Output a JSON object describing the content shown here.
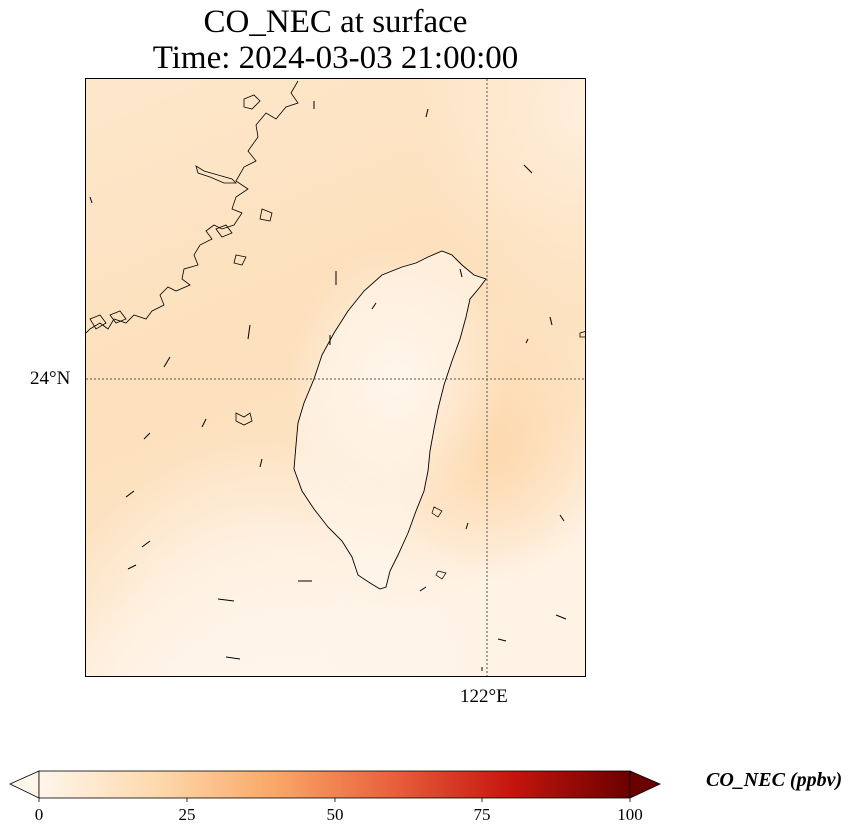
{
  "figure": {
    "title_line1": "CO_NEC at surface",
    "title_line2": "Time: 2024-03-03 21:00:00"
  },
  "map": {
    "lat_gridline_label": "24°N",
    "lon_gridline_label": "122°E",
    "region": "Taiwan and southeast China coast",
    "field_color_low": "#fff5eb",
    "field_color_mid": "#fdd9ad"
  },
  "colorbar": {
    "label": "CO_NEC (ppbv)",
    "min": 0,
    "max": 100,
    "extend": "both",
    "colormap": "Oranges-to-dark-red",
    "ticks": [
      "0",
      "25",
      "50",
      "75",
      "100"
    ],
    "stops": [
      "#fff5eb",
      "#fdd9ad",
      "#f9a766",
      "#e8603c",
      "#c5150d",
      "#6b0000"
    ]
  }
}
